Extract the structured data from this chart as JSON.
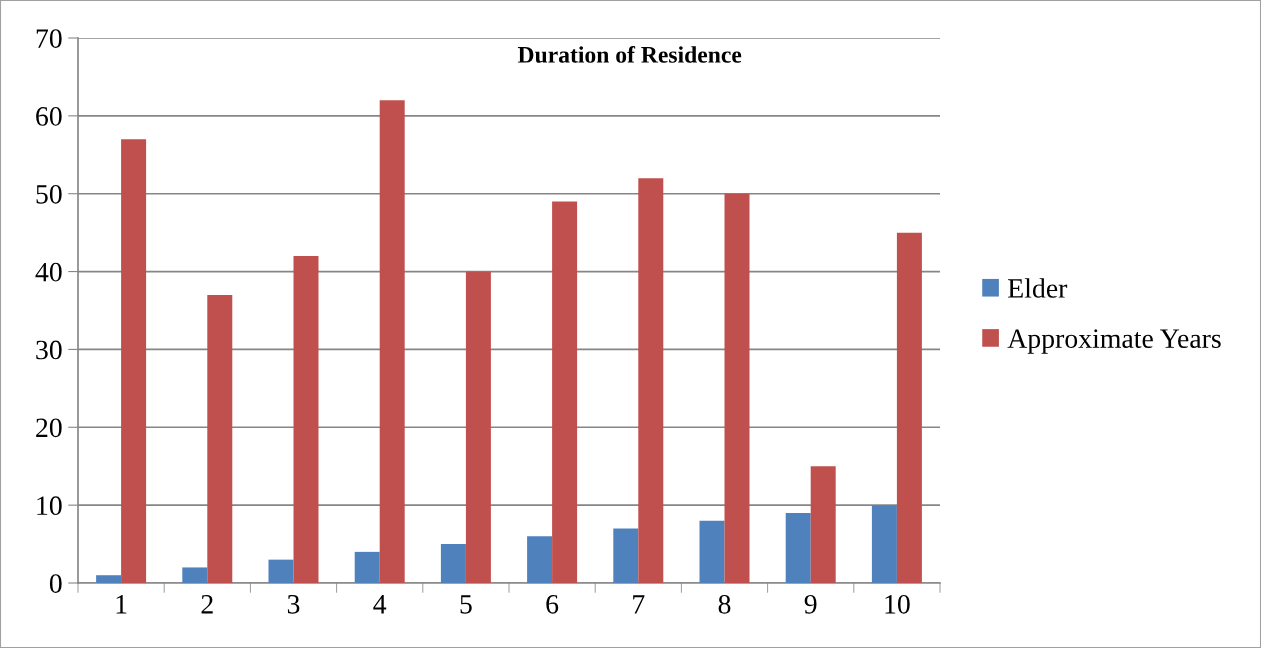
{
  "chart_data": {
    "type": "bar",
    "title": "Duration of Residence",
    "categories": [
      "1",
      "2",
      "3",
      "4",
      "5",
      "6",
      "7",
      "8",
      "9",
      "10"
    ],
    "series": [
      {
        "name": "Elder",
        "color": "#4f81bd",
        "values": [
          1,
          2,
          3,
          4,
          5,
          6,
          7,
          8,
          9,
          10
        ]
      },
      {
        "name": "Approximate Years",
        "color": "#c0504d",
        "values": [
          57,
          37,
          42,
          62,
          40,
          49,
          52,
          50,
          15,
          45
        ]
      }
    ],
    "ylim": [
      0,
      70
    ],
    "yticks": [
      0,
      10,
      20,
      30,
      40,
      50,
      60,
      70
    ],
    "grid": "y",
    "legend": "right"
  }
}
